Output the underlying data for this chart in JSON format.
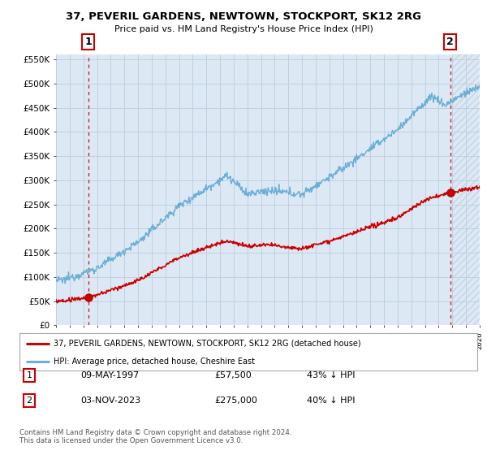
{
  "title": "37, PEVERIL GARDENS, NEWTOWN, STOCKPORT, SK12 2RG",
  "subtitle": "Price paid vs. HM Land Registry's House Price Index (HPI)",
  "legend_line1": "37, PEVERIL GARDENS, NEWTOWN, STOCKPORT, SK12 2RG (detached house)",
  "legend_line2": "HPI: Average price, detached house, Cheshire East",
  "transaction1_label": "1",
  "transaction1_date": "09-MAY-1997",
  "transaction1_price": "£57,500",
  "transaction1_hpi": "43% ↓ HPI",
  "transaction1_year": 1997.36,
  "transaction1_value": 57500,
  "transaction2_label": "2",
  "transaction2_date": "03-NOV-2023",
  "transaction2_price": "£275,000",
  "transaction2_hpi": "40% ↓ HPI",
  "transaction2_year": 2023.84,
  "transaction2_value": 275000,
  "footer": "Contains HM Land Registry data © Crown copyright and database right 2024.\nThis data is licensed under the Open Government Licence v3.0.",
  "ylim": [
    0,
    560000
  ],
  "xlim_start": 1995.0,
  "xlim_end": 2026.0,
  "hpi_color": "#6baed6",
  "price_color": "#cc0000",
  "fig_bg_color": "#ffffff",
  "plot_bg_color": "#dce9f5",
  "grid_color": "#c0d0e0",
  "dashed_color": "#cc2222",
  "marker_color": "#cc0000",
  "hatch_color": "#c0cfe0",
  "hatch_start": 2024.0
}
